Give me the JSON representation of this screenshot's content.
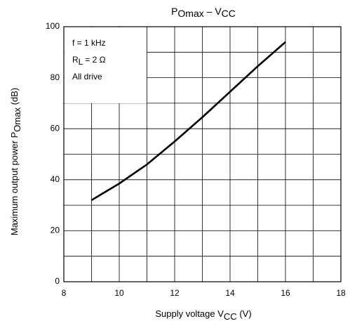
{
  "chart_data": {
    "type": "line",
    "title": [
      {
        "text": "P"
      },
      {
        "text": "Omax",
        "sub": true
      },
      {
        "text": " – V"
      },
      {
        "text": "CC",
        "sub": true
      }
    ],
    "xlabel": [
      {
        "text": "Supply voltage  V"
      },
      {
        "text": "CC",
        "sub": true
      },
      {
        "text": "   (V)"
      }
    ],
    "ylabel": [
      {
        "text": "Maximum output power   P"
      },
      {
        "text": "Omax",
        "sub": true
      },
      {
        "text": "   (dB)"
      }
    ],
    "annotations": [
      [
        {
          "text": "f = 1 kHz"
        }
      ],
      [
        {
          "text": "R"
        },
        {
          "text": "L",
          "sub": true
        },
        {
          "text": " = 2 Ω"
        }
      ],
      [
        {
          "text": "All drive"
        }
      ]
    ],
    "x": [
      9,
      10,
      11,
      12,
      13,
      14,
      15,
      16
    ],
    "series": [
      {
        "color": "#000000",
        "values": [
          32,
          38.5,
          46,
          55,
          64.5,
          74.5,
          84.5,
          94
        ]
      }
    ],
    "xlim": [
      8,
      18
    ],
    "xticks": [
      8,
      10,
      12,
      14,
      16,
      18
    ],
    "minor_xticks": [
      9,
      11,
      13,
      15,
      17
    ],
    "ylim": [
      0,
      100
    ],
    "yticks": [
      0,
      20,
      40,
      60,
      80,
      100
    ],
    "minor_yticks": [
      10,
      30,
      50,
      70,
      90
    ],
    "grid": true
  }
}
